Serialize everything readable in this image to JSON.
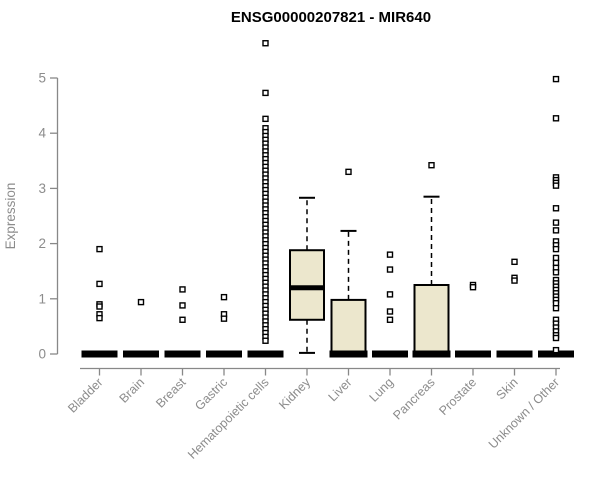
{
  "title": "ENSG00000207821 - MIR640",
  "colors": {
    "box_fill": "#ECE7CD",
    "box_border": "#000000",
    "median": "#000000",
    "axis": "#888888",
    "tick_text": "#8C8C8C",
    "title_text": "#000000",
    "outlier_fill": "#FFFFFF",
    "background": "#FFFFFF"
  },
  "chart_data": {
    "type": "boxplot",
    "title": "ENSG00000207821 - MIR640",
    "xlabel": "",
    "ylabel": "Expression",
    "ylim": [
      0,
      5.7
    ],
    "yticks": [
      0,
      1,
      2,
      3,
      4,
      5
    ],
    "grid": false,
    "legend": "none",
    "categories": [
      "Bladder",
      "Brain",
      "Breast",
      "Gastric",
      "Hematopoietic cells",
      "Kidney",
      "Liver",
      "Lung",
      "Pancreas",
      "Prostate",
      "Skin",
      "Unknown / Other"
    ],
    "series": [
      {
        "name": "Bladder",
        "q1": 0,
        "median": 0,
        "q3": 0,
        "whisker_low": 0,
        "whisker_high": 0,
        "outliers": [
          1.9,
          1.27,
          0.9,
          0.86,
          0.72,
          0.65
        ]
      },
      {
        "name": "Brain",
        "q1": 0,
        "median": 0,
        "q3": 0,
        "whisker_low": 0,
        "whisker_high": 0,
        "outliers": [
          0.94
        ]
      },
      {
        "name": "Breast",
        "q1": 0,
        "median": 0,
        "q3": 0,
        "whisker_low": 0,
        "whisker_high": 0,
        "outliers": [
          1.17,
          0.88,
          0.62
        ]
      },
      {
        "name": "Gastric",
        "q1": 0,
        "median": 0,
        "q3": 0,
        "whisker_low": 0,
        "whisker_high": 0,
        "outliers": [
          1.03,
          0.72,
          0.64
        ]
      },
      {
        "name": "Hematopoietic cells",
        "q1": 0,
        "median": 0,
        "q3": 0,
        "whisker_low": 0,
        "whisker_high": 0,
        "outliers": [
          5.63,
          4.73,
          4.26,
          4.09,
          4.02,
          3.95,
          3.88,
          3.81,
          3.74,
          3.67,
          3.6,
          3.53,
          3.46,
          3.39,
          3.32,
          3.25,
          3.18,
          3.11,
          3.04,
          2.97,
          2.9,
          2.83,
          2.76,
          2.69,
          2.62,
          2.55,
          2.48,
          2.41,
          2.34,
          2.27,
          2.2,
          2.13,
          2.06,
          1.99,
          1.92,
          1.85,
          1.78,
          1.71,
          1.64,
          1.57,
          1.5,
          1.43,
          1.36,
          1.29,
          1.22,
          1.15,
          1.08,
          1.01,
          0.94,
          0.87,
          0.8,
          0.73,
          0.66,
          0.59,
          0.52,
          0.45,
          0.38,
          0.31,
          0.24
        ]
      },
      {
        "name": "Kidney",
        "q1": 0.62,
        "median": 1.2,
        "q3": 1.88,
        "whisker_low": 0.02,
        "whisker_high": 2.83,
        "outliers": []
      },
      {
        "name": "Liver",
        "q1": 0,
        "median": 0,
        "q3": 0.98,
        "whisker_low": 0,
        "whisker_high": 2.23,
        "outliers": [
          3.3
        ]
      },
      {
        "name": "Lung",
        "q1": 0,
        "median": 0,
        "q3": 0,
        "whisker_low": 0,
        "whisker_high": 0,
        "outliers": [
          1.8,
          1.53,
          1.08,
          0.77,
          0.62
        ]
      },
      {
        "name": "Pancreas",
        "q1": 0,
        "median": 0,
        "q3": 1.25,
        "whisker_low": 0,
        "whisker_high": 2.85,
        "outliers": [
          3.42
        ]
      },
      {
        "name": "Prostate",
        "q1": 0,
        "median": 0,
        "q3": 0,
        "whisker_low": 0,
        "whisker_high": 0,
        "outliers": [
          1.25,
          1.21
        ]
      },
      {
        "name": "Skin",
        "q1": 0,
        "median": 0,
        "q3": 0,
        "whisker_low": 0,
        "whisker_high": 0,
        "outliers": [
          1.67,
          1.38,
          1.33
        ]
      },
      {
        "name": "Unknown / Other",
        "q1": 0,
        "median": 0,
        "q3": 0,
        "whisker_low": 0,
        "whisker_high": 0,
        "outliers": [
          4.98,
          4.27,
          3.2,
          3.15,
          3.1,
          3.05,
          2.64,
          2.38,
          2.24,
          2.04,
          1.97,
          1.9,
          1.74,
          1.65,
          1.56,
          1.48,
          1.34,
          1.28,
          1.22,
          1.16,
          1.1,
          1.04,
          0.98,
          0.92,
          0.83,
          0.62,
          0.55,
          0.48,
          0.41,
          0.34,
          0.29,
          0.07
        ]
      }
    ]
  }
}
